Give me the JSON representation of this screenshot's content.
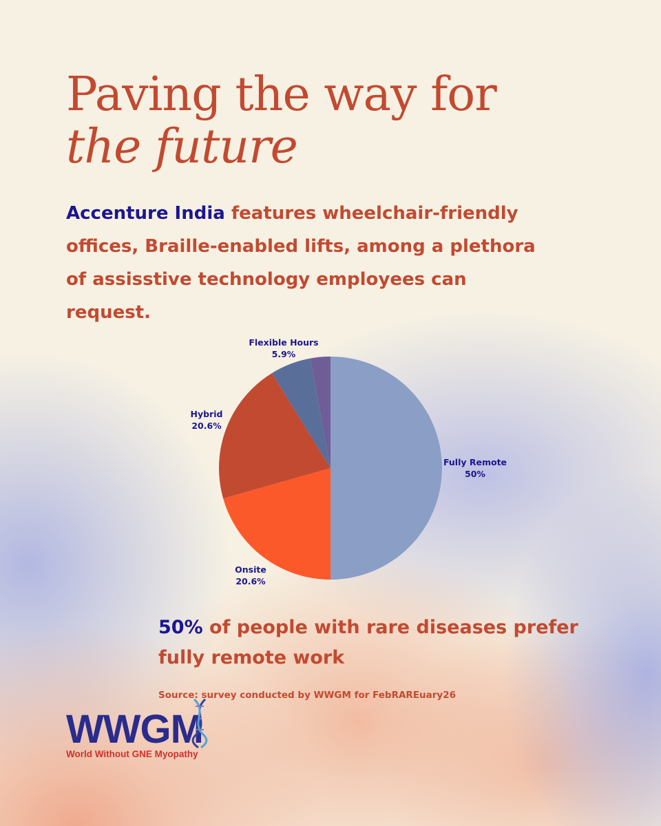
{
  "header": {
    "title_line1": "Paving the way for",
    "title_line2": "the future"
  },
  "intro": {
    "highlight": "Accenture India",
    "text": " features wheelchair-friendly offices, Braille-enabled lifts, among a plethora of assisstive technology employees can request."
  },
  "chart_data": {
    "type": "pie",
    "title": "",
    "slices": [
      {
        "label": "Fully Remote",
        "value": 50,
        "value_label": "50%",
        "color": "#8a9ec6"
      },
      {
        "label": "Onsite",
        "value": 20.6,
        "value_label": "20.6%",
        "color": "#fc592b"
      },
      {
        "label": "Hybrid",
        "value": 20.6,
        "value_label": "20.6%",
        "color": "#c24a31"
      },
      {
        "label": "Flexible Hours",
        "value": 5.9,
        "value_label": "5.9%",
        "color": "#5a6e9a"
      },
      {
        "label": "",
        "value": 2.9,
        "value_label": "",
        "color": "#6f5d97"
      }
    ],
    "label_color": "#1d1690",
    "legend": "none"
  },
  "stat": {
    "highlight": "50%",
    "text": " of people with rare diseases prefer fully remote work"
  },
  "source": "Source: survey conducted by WWGM for FebRAREuary26",
  "logo": {
    "name": "WWGM",
    "subtitle": "World Without GNE Myopathy",
    "icon": "dna-helix-icon"
  },
  "colors": {
    "accent": "#c24a31",
    "highlight": "#1d1690",
    "background": "#f6f1e3"
  }
}
